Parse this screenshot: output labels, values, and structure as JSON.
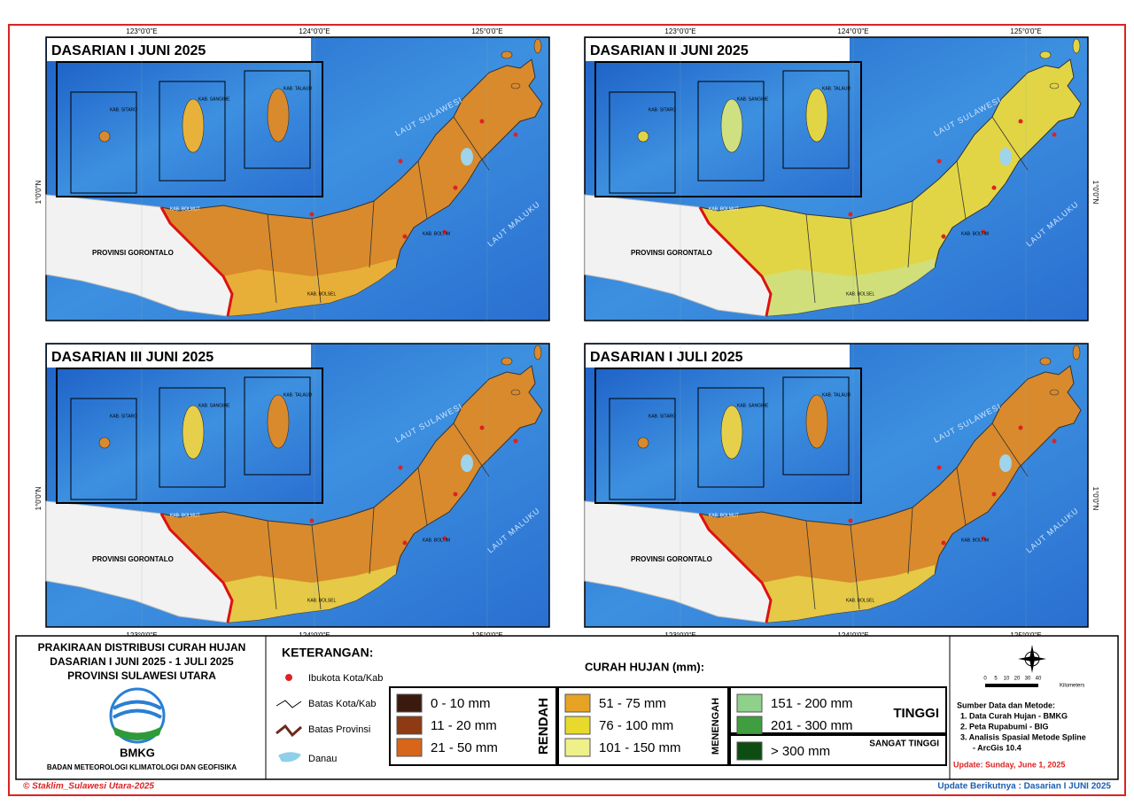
{
  "panels": [
    {
      "title": "DASARIAN I JUNI 2025",
      "color": "#d98a2c",
      "color2": "#e8b23a"
    },
    {
      "title": "DASARIAN II JUNI 2025",
      "color": "#e2d545",
      "color2": "#cfe080"
    },
    {
      "title": "DASARIAN III JUNI 2025",
      "color": "#d98a2c",
      "color2": "#e6cf4a"
    },
    {
      "title": "DASARIAN I JULI 2025",
      "color": "#d98a2c",
      "color2": "#e6cf4a"
    }
  ],
  "map_labels": {
    "lon": [
      "123°0'0\"E",
      "124°0'0\"E",
      "125°0'0\"E"
    ],
    "lat": "1°0'0\"N",
    "sea_north": "LAUT SULAWESI",
    "sea_east": "LAUT MALUKU",
    "neighbor": "PROVINSI GORONTALO",
    "regencies": [
      "KAB. SITARO",
      "KAB. SANGIHE",
      "KAB. TALAUD",
      "KAB. BOLMUT",
      "KAB. BOLSEL",
      "KAB. BOLTIM"
    ]
  },
  "footer": {
    "title": [
      "PRAKIRAAN DISTRIBUSI CURAH HUJAN",
      "DASARIAN I JUNI 2025 - 1 JULI 2025",
      "PROVINSI SULAWESI UTARA"
    ],
    "logo": "BMKG",
    "agency": "BADAN METEOROLOGI KLIMATOLOGI DAN GEOFISIKA",
    "legend_title": "KETERANGAN:",
    "symbols": [
      "Ibukota Kota/Kab",
      "Batas Kota/Kab",
      "Batas Provinsi",
      "Danau"
    ],
    "rain_title": "CURAH HUJAN (mm):",
    "groups": [
      {
        "name": "RENDAH",
        "classes": [
          {
            "label": "0 - 10 mm",
            "color": "#3b1a0e"
          },
          {
            "label": "11 - 20 mm",
            "color": "#8e3a12"
          },
          {
            "label": "21 - 50 mm",
            "color": "#d8661a"
          }
        ]
      },
      {
        "name": "MENENGAH",
        "classes": [
          {
            "label": "51 - 75 mm",
            "color": "#e6a323"
          },
          {
            "label": "76 - 100 mm",
            "color": "#e8da2a"
          },
          {
            "label": "101 - 150 mm",
            "color": "#eef08a"
          }
        ]
      },
      {
        "name": "TINGGI",
        "classes": [
          {
            "label": "151 - 200 mm",
            "color": "#8fd08a"
          },
          {
            "label": "201 - 300 mm",
            "color": "#3f9e3f"
          }
        ]
      },
      {
        "name": "SANGAT TINGGI",
        "classes": [
          {
            "label": "> 300 mm",
            "color": "#0d4d12"
          }
        ]
      }
    ],
    "scale": [
      "0",
      "5",
      "10",
      "20",
      "30",
      "40"
    ],
    "scale_unit": "Kilometers",
    "sources_title": "Sumber Data dan Metode:",
    "sources": [
      "1. Data Curah Hujan - BMKG",
      "2. Peta Rupabumi - BIG",
      "3. Analisis Spasial Metode Spline",
      "- ArcGis 10.4"
    ],
    "update": "Update: Sunday, June 1, 2025",
    "copyright": "© Staklim_Sulawesi Utara-2025",
    "next": "Update Berikutnya : Dasarian I JUNI 2025"
  }
}
